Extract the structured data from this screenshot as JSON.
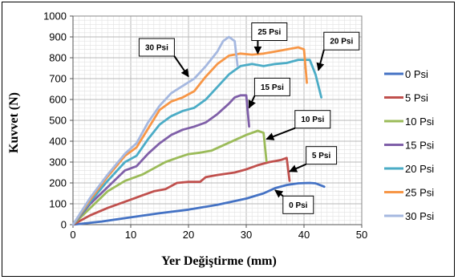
{
  "chart_data": {
    "type": "line",
    "title": "",
    "xlabel": "Yer Değiştirme (mm)",
    "ylabel": "Kuvvet (N)",
    "xlim": [
      0,
      50
    ],
    "ylim": [
      0,
      1000
    ],
    "xticks": [
      "0",
      "10",
      "20",
      "30",
      "40",
      "50"
    ],
    "yticks": [
      "0",
      "100",
      "200",
      "300",
      "400",
      "500",
      "600",
      "700",
      "800",
      "900",
      "1000"
    ],
    "grid": true,
    "legend_position": "right",
    "series": [
      {
        "name": "0 Psi",
        "color": "#4472c4",
        "points": [
          [
            0,
            0
          ],
          [
            5,
            15
          ],
          [
            10,
            35
          ],
          [
            15,
            55
          ],
          [
            20,
            72
          ],
          [
            25,
            95
          ],
          [
            30,
            125
          ],
          [
            33,
            150
          ],
          [
            35,
            175
          ],
          [
            37,
            190
          ],
          [
            39,
            198
          ],
          [
            41,
            200
          ],
          [
            42,
            198
          ],
          [
            43.5,
            182
          ]
        ]
      },
      {
        "name": "5 Psi",
        "color": "#c0504d",
        "points": [
          [
            0,
            0
          ],
          [
            3,
            45
          ],
          [
            6,
            80
          ],
          [
            9,
            110
          ],
          [
            12,
            140
          ],
          [
            14,
            160
          ],
          [
            16,
            170
          ],
          [
            18,
            200
          ],
          [
            20,
            205
          ],
          [
            22,
            205
          ],
          [
            23,
            228
          ],
          [
            25,
            238
          ],
          [
            28,
            250
          ],
          [
            30,
            265
          ],
          [
            32,
            285
          ],
          [
            34,
            300
          ],
          [
            35,
            305
          ],
          [
            36,
            310
          ],
          [
            37,
            320
          ],
          [
            37.5,
            210
          ]
        ]
      },
      {
        "name": "10 Psi",
        "color": "#9bbb59",
        "points": [
          [
            0,
            0
          ],
          [
            3,
            80
          ],
          [
            6,
            160
          ],
          [
            9,
            210
          ],
          [
            12,
            240
          ],
          [
            14,
            270
          ],
          [
            16,
            300
          ],
          [
            18,
            320
          ],
          [
            20,
            338
          ],
          [
            22,
            345
          ],
          [
            24,
            355
          ],
          [
            26,
            380
          ],
          [
            28,
            405
          ],
          [
            30,
            430
          ],
          [
            32,
            450
          ],
          [
            33,
            440
          ],
          [
            33.5,
            305
          ]
        ]
      },
      {
        "name": "15 Psi",
        "color": "#7f5fa8",
        "points": [
          [
            0,
            0
          ],
          [
            3,
            100
          ],
          [
            6,
            180
          ],
          [
            9,
            260
          ],
          [
            11,
            280
          ],
          [
            13,
            340
          ],
          [
            15,
            390
          ],
          [
            17,
            430
          ],
          [
            19,
            455
          ],
          [
            21,
            470
          ],
          [
            23,
            490
          ],
          [
            25,
            530
          ],
          [
            27,
            580
          ],
          [
            28,
            610
          ],
          [
            29,
            620
          ],
          [
            30,
            620
          ],
          [
            30.5,
            470
          ]
        ]
      },
      {
        "name": "20 Psi",
        "color": "#4bacc6",
        "points": [
          [
            0,
            0
          ],
          [
            3,
            110
          ],
          [
            6,
            210
          ],
          [
            9,
            300
          ],
          [
            11,
            330
          ],
          [
            13,
            410
          ],
          [
            15,
            480
          ],
          [
            17,
            520
          ],
          [
            19,
            545
          ],
          [
            21,
            560
          ],
          [
            23,
            600
          ],
          [
            25,
            660
          ],
          [
            27,
            720
          ],
          [
            29,
            760
          ],
          [
            31,
            770
          ],
          [
            33,
            760
          ],
          [
            35,
            770
          ],
          [
            37,
            775
          ],
          [
            39,
            790
          ],
          [
            41,
            790
          ],
          [
            42,
            720
          ],
          [
            43,
            610
          ]
        ]
      },
      {
        "name": "25 Psi",
        "color": "#f79646",
        "points": [
          [
            0,
            0
          ],
          [
            3,
            120
          ],
          [
            6,
            230
          ],
          [
            9,
            330
          ],
          [
            11,
            370
          ],
          [
            13,
            460
          ],
          [
            15,
            550
          ],
          [
            17,
            590
          ],
          [
            19,
            610
          ],
          [
            21,
            640
          ],
          [
            23,
            710
          ],
          [
            25,
            770
          ],
          [
            27,
            810
          ],
          [
            29,
            820
          ],
          [
            31,
            815
          ],
          [
            33,
            820
          ],
          [
            35,
            830
          ],
          [
            37,
            840
          ],
          [
            39,
            850
          ],
          [
            40,
            840
          ],
          [
            40.5,
            680
          ]
        ]
      },
      {
        "name": "30 Psi",
        "color": "#a5b8e0",
        "points": [
          [
            0,
            0
          ],
          [
            3,
            130
          ],
          [
            6,
            240
          ],
          [
            9,
            340
          ],
          [
            11,
            390
          ],
          [
            13,
            490
          ],
          [
            15,
            570
          ],
          [
            17,
            630
          ],
          [
            19,
            665
          ],
          [
            21,
            700
          ],
          [
            23,
            760
          ],
          [
            25,
            830
          ],
          [
            26,
            880
          ],
          [
            27,
            900
          ],
          [
            28,
            880
          ],
          [
            28.5,
            760
          ]
        ]
      }
    ],
    "annotations": [
      {
        "text": "30 Psi",
        "box_at": [
          14.5,
          850
        ],
        "arrow_to": [
          20,
          710
        ]
      },
      {
        "text": "25 Psi",
        "box_at": [
          34,
          925
        ],
        "arrow_to": [
          32,
          820
        ]
      },
      {
        "text": "20 Psi",
        "box_at": [
          46.5,
          880
        ],
        "arrow_to": [
          42.5,
          740
        ]
      },
      {
        "text": "15 Psi",
        "box_at": [
          34.5,
          660
        ],
        "arrow_to": [
          30.5,
          560
        ]
      },
      {
        "text": "10 Psi",
        "box_at": [
          41.5,
          505
        ],
        "arrow_to": [
          33.5,
          410
        ]
      },
      {
        "text": "5 Psi",
        "box_at": [
          43,
          332
        ],
        "arrow_to": [
          37.5,
          255
        ]
      },
      {
        "text": "0 Psi",
        "box_at": [
          39,
          95
        ],
        "arrow_to": [
          35,
          165
        ]
      }
    ]
  }
}
